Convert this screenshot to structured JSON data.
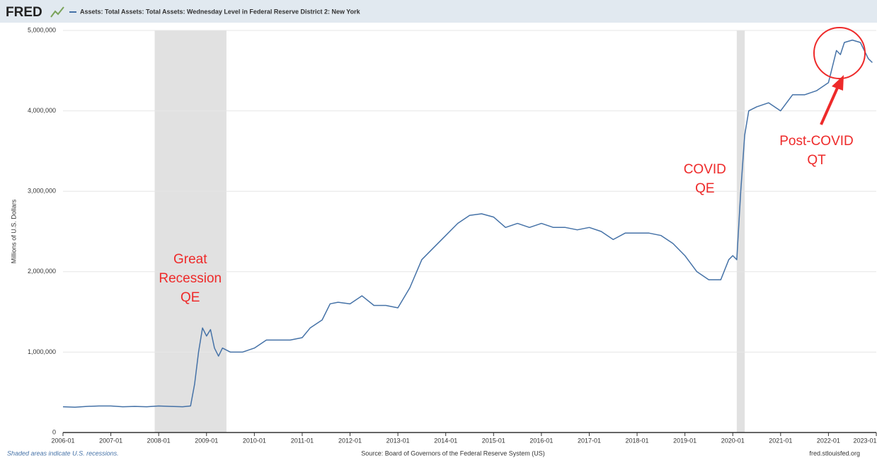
{
  "chart_data": {
    "type": "line",
    "logo": "FRED",
    "title": "Assets: Total Assets: Total Assets: Wednesday Level in Federal Reserve District 2: New York",
    "ylabel": "Millions of U.S. Dollars",
    "note": "Shaded areas indicate U.S. recessions.",
    "source": "Source: Board of Governors of the Federal Reserve System (US)",
    "site": "fred.stlouisfed.org",
    "xlim": [
      "2006-01",
      "2023-01"
    ],
    "xticks": [
      "2006-01",
      "2007-01",
      "2008-01",
      "2009-01",
      "2010-01",
      "2011-01",
      "2012-01",
      "2013-01",
      "2014-01",
      "2015-01",
      "2016-01",
      "2017-01",
      "2018-01",
      "2019-01",
      "2020-01",
      "2021-01",
      "2022-01",
      "2023-01"
    ],
    "ylim": [
      0,
      5000000
    ],
    "yticks": [
      0,
      {
        "value": 1000000,
        "label": "1,000,000"
      },
      {
        "value": 2000000,
        "label": "2,000,000"
      },
      {
        "value": 3000000,
        "label": "3,000,000"
      },
      {
        "value": 4000000,
        "label": "4,000,000"
      },
      {
        "value": 5000000,
        "label": "5,000,000"
      }
    ],
    "grid": true,
    "recessions": [
      [
        "2007-12",
        "2009-06"
      ],
      [
        "2020-02",
        "2020-04"
      ]
    ],
    "annotations": [
      {
        "lines": [
          "Great",
          "Recession",
          "QE"
        ],
        "x": "2009-01"
      },
      {
        "lines": [
          "COVID",
          "QE"
        ],
        "x": "2019-06"
      },
      {
        "lines": [
          "Post-COVID",
          "QT"
        ],
        "x": "2021-10"
      }
    ],
    "series": [
      {
        "name": "Assets: Total Assets: Total Assets: Wednesday Level in Federal Reserve District 2: New York",
        "color": "#4572a7",
        "x": [
          "2006-01",
          "2006-04",
          "2006-07",
          "2006-10",
          "2007-01",
          "2007-04",
          "2007-07",
          "2007-10",
          "2008-01",
          "2008-04",
          "2008-07",
          "2008-09",
          "2008-10",
          "2008-11",
          "2008-12",
          "2009-01",
          "2009-02",
          "2009-03",
          "2009-04",
          "2009-05",
          "2009-07",
          "2009-10",
          "2010-01",
          "2010-04",
          "2010-07",
          "2010-10",
          "2011-01",
          "2011-03",
          "2011-06",
          "2011-08",
          "2011-10",
          "2012-01",
          "2012-04",
          "2012-07",
          "2012-10",
          "2013-01",
          "2013-04",
          "2013-07",
          "2013-10",
          "2014-01",
          "2014-04",
          "2014-07",
          "2014-10",
          "2015-01",
          "2015-04",
          "2015-07",
          "2015-10",
          "2016-01",
          "2016-04",
          "2016-07",
          "2016-10",
          "2017-01",
          "2017-04",
          "2017-07",
          "2017-10",
          "2018-01",
          "2018-04",
          "2018-07",
          "2018-10",
          "2019-01",
          "2019-04",
          "2019-07",
          "2019-10",
          "2019-12",
          "2020-01",
          "2020-02",
          "2020-03",
          "2020-04",
          "2020-05",
          "2020-07",
          "2020-10",
          "2021-01",
          "2021-04",
          "2021-07",
          "2021-10",
          "2022-01",
          "2022-03",
          "2022-04",
          "2022-05",
          "2022-07",
          "2022-09",
          "2022-11",
          "2022-12"
        ],
        "values": [
          320000,
          315000,
          325000,
          330000,
          330000,
          320000,
          325000,
          320000,
          330000,
          325000,
          320000,
          330000,
          600000,
          1000000,
          1300000,
          1200000,
          1280000,
          1050000,
          950000,
          1050000,
          1000000,
          1000000,
          1050000,
          1150000,
          1150000,
          1150000,
          1180000,
          1300000,
          1400000,
          1600000,
          1620000,
          1600000,
          1700000,
          1580000,
          1580000,
          1550000,
          1800000,
          2150000,
          2300000,
          2450000,
          2600000,
          2700000,
          2720000,
          2680000,
          2550000,
          2600000,
          2550000,
          2600000,
          2550000,
          2550000,
          2520000,
          2550000,
          2500000,
          2400000,
          2480000,
          2480000,
          2480000,
          2450000,
          2350000,
          2200000,
          2000000,
          1900000,
          1900000,
          2150000,
          2200000,
          2150000,
          3000000,
          3700000,
          4000000,
          4050000,
          4100000,
          4000000,
          4200000,
          4200000,
          4250000,
          4350000,
          4750000,
          4700000,
          4850000,
          4880000,
          4850000,
          4650000,
          4600000
        ]
      }
    ]
  }
}
